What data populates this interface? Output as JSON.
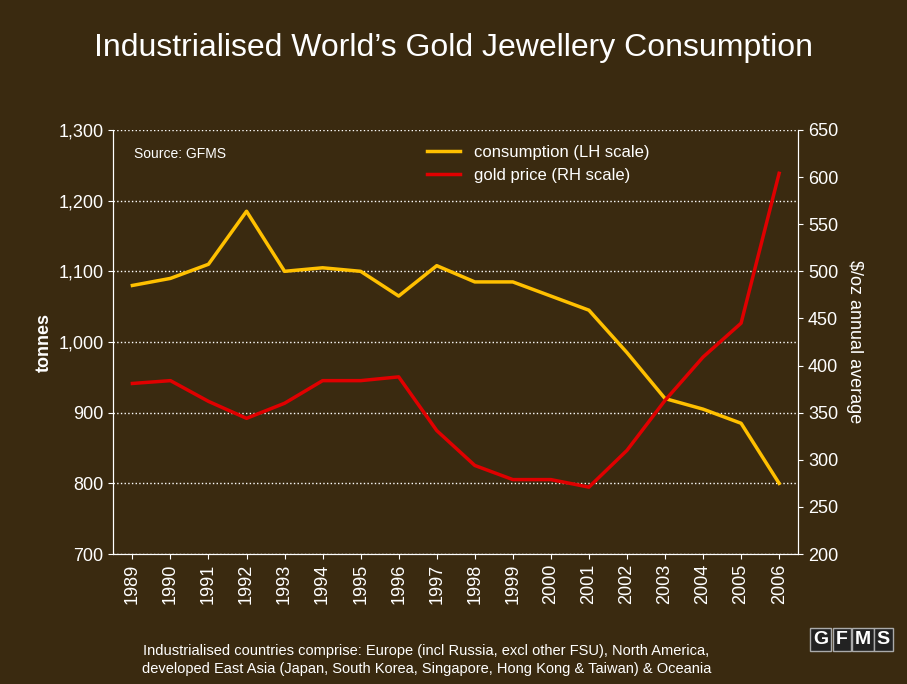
{
  "chart_data": {
    "type": "line",
    "title": "Industrialised World’s Gold Jewellery Consumption",
    "annotations": [
      "Source: GFMS"
    ],
    "footnote": "Industrialised countries comprise: Europe (incl Russia, excl other FSU), North America,\ndeveloped East Asia (Japan, South Korea, Singapore, Hong Kong & Taiwan) & Oceania",
    "logo": "GFMS",
    "y_label": "tonnes",
    "y2_label": "$/oz annual average",
    "categories": [
      "1989",
      "1990",
      "1991",
      "1992",
      "1993",
      "1994",
      "1995",
      "1996",
      "1997",
      "1998",
      "1999",
      "2000",
      "2001",
      "2002",
      "2003",
      "2004",
      "2005",
      "2006"
    ],
    "series": [
      {
        "name": "consumption (LH scale)",
        "color": "#ffc000",
        "axis": "y",
        "values": [
          1080,
          1090,
          1110,
          1185,
          1100,
          1105,
          1100,
          1065,
          1108,
          1085,
          1085,
          1065,
          1045,
          985,
          920,
          905,
          885,
          800
        ]
      },
      {
        "name": "gold price (RH scale)",
        "color": "#e00000",
        "axis": "y2",
        "values": [
          381,
          384,
          362,
          344,
          360,
          384,
          384,
          388,
          331,
          294,
          279,
          279,
          271,
          310,
          363,
          409,
          445,
          604
        ]
      }
    ],
    "ylim": [
      700,
      1300
    ],
    "yticks": [
      700,
      800,
      900,
      {
        "value": 1000,
        "label": "1,000"
      },
      {
        "value": 1100,
        "label": "1,100"
      },
      {
        "value": 1200,
        "label": "1,200"
      },
      {
        "value": 1300,
        "label": "1,300"
      }
    ],
    "y2lim": [
      200,
      650
    ],
    "y2ticks": [
      200,
      250,
      300,
      350,
      400,
      450,
      500,
      550,
      600,
      650
    ],
    "grid": true,
    "legend": "upper center"
  }
}
